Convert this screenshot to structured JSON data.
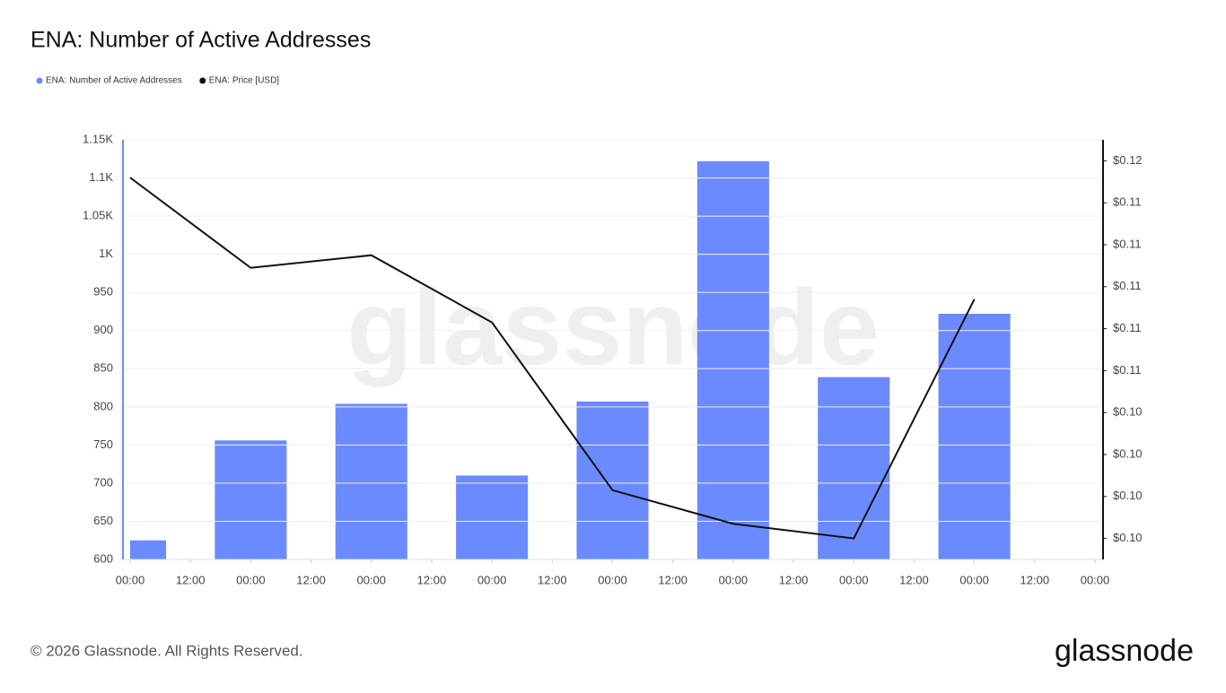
{
  "chart_data": {
    "type": "bar",
    "title": "ENA: Number of Active Addresses",
    "watermark": "glassnode",
    "footer": "© 2026 Glassnode. All Rights Reserved.",
    "logo": "glassnode",
    "x": [
      0,
      24,
      48,
      72,
      96,
      120,
      144,
      168
    ],
    "xlim": [
      0,
      192
    ],
    "xticks": [
      {
        "value": 0,
        "label": "00:00"
      },
      {
        "value": 12,
        "label": "12:00"
      },
      {
        "value": 24,
        "label": "00:00"
      },
      {
        "value": 36,
        "label": "12:00"
      },
      {
        "value": 48,
        "label": "00:00"
      },
      {
        "value": 60,
        "label": "12:00"
      },
      {
        "value": 72,
        "label": "00:00"
      },
      {
        "value": 84,
        "label": "12:00"
      },
      {
        "value": 96,
        "label": "00:00"
      },
      {
        "value": 108,
        "label": "12:00"
      },
      {
        "value": 120,
        "label": "00:00"
      },
      {
        "value": 132,
        "label": "12:00"
      },
      {
        "value": 144,
        "label": "00:00"
      },
      {
        "value": 156,
        "label": "12:00"
      },
      {
        "value": 168,
        "label": "00:00"
      },
      {
        "value": 180,
        "label": "12:00"
      },
      {
        "value": 192,
        "label": "00:00"
      }
    ],
    "ylim": [
      600,
      1150
    ],
    "yticks": [
      600,
      650,
      700,
      750,
      800,
      850,
      900,
      950,
      {
        "value": 1000,
        "label": "1K"
      },
      {
        "value": 1050,
        "label": "1.05K"
      },
      {
        "value": 1100,
        "label": "1.1K"
      },
      {
        "value": 1150,
        "label": "1.15K"
      }
    ],
    "y2lim": [
      0.097,
      0.117
    ],
    "y2ticks": [
      {
        "value": 0.098,
        "label": "$0.10"
      },
      {
        "value": 0.1,
        "label": "$0.10"
      },
      {
        "value": 0.102,
        "label": "$0.10"
      },
      {
        "value": 0.104,
        "label": "$0.10"
      },
      {
        "value": 0.106,
        "label": "$0.11"
      },
      {
        "value": 0.108,
        "label": "$0.11"
      },
      {
        "value": 0.11,
        "label": "$0.11"
      },
      {
        "value": 0.112,
        "label": "$0.11"
      },
      {
        "value": 0.114,
        "label": "$0.11"
      },
      {
        "value": 0.116,
        "label": "$0.12"
      }
    ],
    "grid": true,
    "series": [
      {
        "name": "ENA: Number of Active Addresses",
        "type": "bar",
        "color": "#6b8afd",
        "values": [
          625,
          756,
          804,
          710,
          807,
          1122,
          839,
          922
        ]
      },
      {
        "name": "ENA: Price [USD]",
        "type": "line",
        "axis": "y2",
        "color": "#111111",
        "values": [
          0.1152,
          0.1109,
          0.1115,
          0.1083,
          0.1003,
          0.0987,
          0.098,
          0.1094
        ]
      }
    ]
  }
}
